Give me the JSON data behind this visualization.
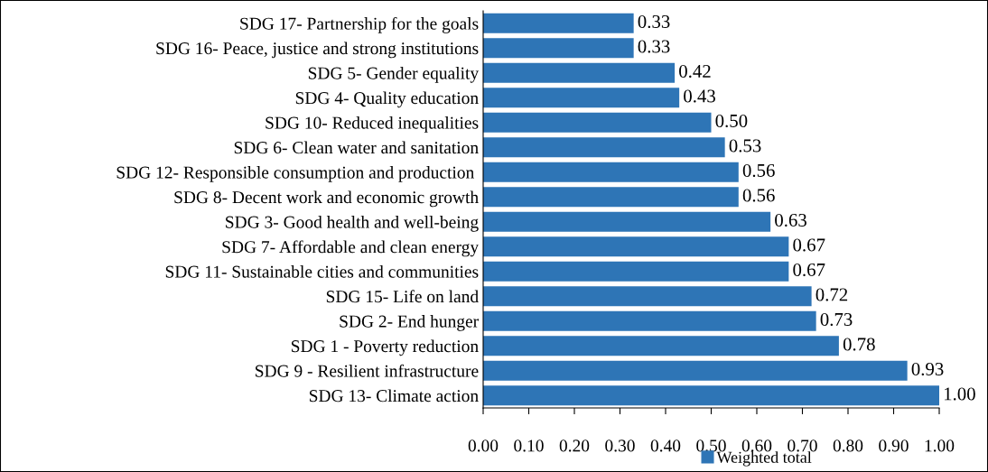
{
  "chart_data": {
    "type": "bar",
    "orientation": "horizontal",
    "categories": [
      "SDG 17- Partnership for the goals",
      "SDG 16- Peace, justice and strong institutions",
      "SDG 5- Gender equality",
      "SDG 4- Quality education",
      "SDG 10- Reduced inequalities",
      "SDG 6- Clean water and sanitation",
      "SDG 12- Responsible consumption and production ",
      "SDG 8- Decent work and economic growth",
      "SDG 3- Good health and well-being",
      "SDG 7- Affordable and clean energy",
      "SDG 11- Sustainable cities and communities",
      "SDG 15- Life on land",
      "SDG 2- End hunger",
      "SDG 1 - Poverty reduction",
      "SDG 9 - Resilient infrastructure",
      "SDG 13- Climate action"
    ],
    "series": [
      {
        "name": "Weighted total",
        "color": "#2e75b6",
        "values": [
          0.33,
          0.33,
          0.42,
          0.43,
          0.5,
          0.53,
          0.56,
          0.56,
          0.63,
          0.67,
          0.67,
          0.72,
          0.73,
          0.78,
          0.93,
          1.0
        ],
        "value_labels": [
          "0.33",
          "0.33",
          "0.42",
          "0.43",
          "0.50",
          "0.53",
          "0.56",
          "0.56",
          "0.63",
          "0.67",
          "0.67",
          "0.72",
          "0.73",
          "0.78",
          "0.93",
          "1.00"
        ]
      }
    ],
    "xlim": [
      0,
      1
    ],
    "xticks": [
      {
        "value": 0,
        "label": "0.00"
      },
      {
        "value": 0.1,
        "label": "0.10"
      },
      {
        "value": 0.2,
        "label": "0.20"
      },
      {
        "value": 0.3,
        "label": "0.30"
      },
      {
        "value": 0.4,
        "label": "0.40"
      },
      {
        "value": 0.5,
        "label": "0.50"
      },
      {
        "value": 0.6,
        "label": "0.60"
      },
      {
        "value": 0.7,
        "label": "0.70"
      },
      {
        "value": 0.8,
        "label": "0.80"
      },
      {
        "value": 0.9,
        "label": "0.90"
      },
      {
        "value": 1,
        "label": "1.00"
      }
    ],
    "grid": false,
    "legend": "bottom"
  }
}
